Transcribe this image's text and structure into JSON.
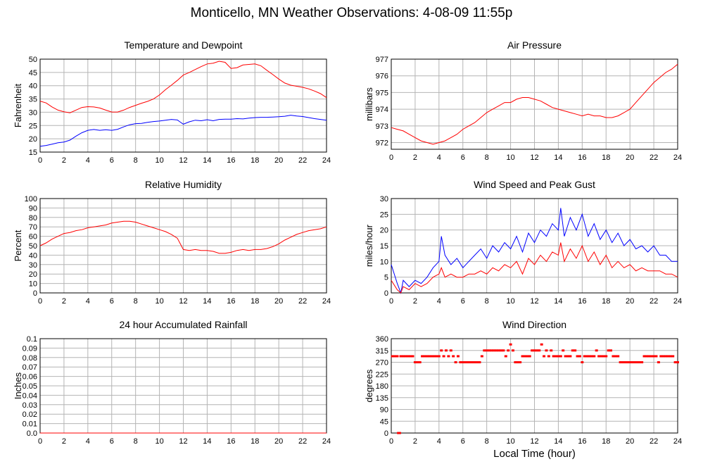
{
  "title": "Monticello, MN Weather Observations: 4-08-09 11:55p",
  "footer_xlabel": "Local Time (hour)",
  "colors": {
    "red": "#ff0000",
    "blue": "#0000ff",
    "grid": "#b4b4b4"
  },
  "chart_data": [
    {
      "id": "temp",
      "type": "line",
      "title": "Temperature and Dewpoint",
      "ylabel": "Fahrenheit",
      "xlim": [
        0,
        24
      ],
      "ylim": [
        15,
        50
      ],
      "xticks": [
        0,
        2,
        4,
        6,
        8,
        10,
        12,
        14,
        16,
        18,
        20,
        22,
        24
      ],
      "yticks": [
        15,
        20,
        25,
        30,
        35,
        40,
        45,
        50
      ],
      "yticklabels": [
        "15",
        "20",
        "25",
        "30",
        "35",
        "40",
        "45",
        "50"
      ],
      "grid": true,
      "series": [
        {
          "color": "#ff0000",
          "x": [
            0,
            0.5,
            1,
            1.5,
            2,
            2.5,
            3,
            3.5,
            4,
            4.5,
            5,
            5.5,
            6,
            6.5,
            7,
            7.5,
            8,
            8.5,
            9,
            9.5,
            10,
            10.5,
            11,
            11.5,
            12,
            12.5,
            13,
            13.5,
            14,
            14.5,
            15,
            15.5,
            16,
            16.5,
            17,
            17.5,
            18,
            18.5,
            19,
            19.5,
            20,
            20.5,
            21,
            21.5,
            22,
            22.5,
            23,
            23.5,
            24
          ],
          "y": [
            34.2,
            33.5,
            32,
            30.8,
            30.2,
            29.8,
            30.8,
            31.8,
            32.1,
            32,
            31.6,
            30.8,
            30.1,
            30.1,
            30.8,
            31.8,
            32.6,
            33.4,
            34.1,
            35,
            36.5,
            38.5,
            40.2,
            42,
            44,
            45,
            46.1,
            47.2,
            48.2,
            48.5,
            49.2,
            48.8,
            46.5,
            46.8,
            47.8,
            48,
            48.2,
            47.5,
            45.8,
            44.2,
            42.5,
            41,
            40.2,
            39.8,
            39.4,
            38.8,
            38,
            37,
            35.5
          ]
        },
        {
          "color": "#0000ff",
          "x": [
            0,
            0.5,
            1,
            1.5,
            2,
            2.5,
            3,
            3.5,
            4,
            4.5,
            5,
            5.5,
            6,
            6.5,
            7,
            7.5,
            8,
            8.5,
            9,
            9.5,
            10,
            10.5,
            11,
            11.5,
            12,
            12.5,
            13,
            13.5,
            14,
            14.5,
            15,
            15.5,
            16,
            16.5,
            17,
            17.5,
            18,
            18.5,
            19,
            19.5,
            20,
            20.5,
            21,
            21.5,
            22,
            22.5,
            23,
            23.5,
            24
          ],
          "y": [
            17.2,
            17.5,
            18,
            18.5,
            18.8,
            19.5,
            21,
            22.3,
            23.2,
            23.5,
            23.2,
            23.4,
            23.2,
            23.6,
            24.5,
            25.3,
            25.7,
            25.8,
            26.2,
            26.5,
            26.7,
            27,
            27.3,
            27.1,
            25.5,
            26.4,
            27,
            26.8,
            27.2,
            26.8,
            27.3,
            27.4,
            27.4,
            27.6,
            27.5,
            27.8,
            28,
            28.1,
            28.1,
            28.2,
            28.3,
            28.5,
            28.9,
            28.6,
            28.4,
            28,
            27.6,
            27.3,
            27
          ]
        }
      ]
    },
    {
      "id": "pressure",
      "type": "line",
      "title": "Air Pressure",
      "ylabel": "millibars",
      "xlim": [
        0,
        24
      ],
      "ylim": [
        971.6,
        977
      ],
      "xticks": [
        0,
        2,
        4,
        6,
        8,
        10,
        12,
        14,
        16,
        18,
        20,
        22,
        24
      ],
      "yticks": [
        972,
        973,
        974,
        975,
        976,
        977
      ],
      "yticklabels": [
        "972",
        "973",
        "974",
        "975",
        "976",
        "977"
      ],
      "grid": true,
      "series": [
        {
          "color": "#ff0000",
          "x": [
            0,
            0.5,
            1,
            1.5,
            2,
            2.5,
            3,
            3.5,
            4,
            4.5,
            5,
            5.5,
            6,
            6.5,
            7,
            7.5,
            8,
            8.5,
            9,
            9.5,
            10,
            10.5,
            11,
            11.5,
            12,
            12.5,
            13,
            13.5,
            14,
            14.5,
            15,
            15.5,
            16,
            16.5,
            17,
            17.5,
            18,
            18.5,
            19,
            19.5,
            20,
            20.5,
            21,
            21.5,
            22,
            22.5,
            23,
            23.5,
            24
          ],
          "y": [
            972.9,
            972.8,
            972.7,
            972.5,
            972.3,
            972.1,
            972,
            971.9,
            972,
            972.1,
            972.3,
            972.5,
            972.8,
            973,
            973.2,
            973.5,
            973.8,
            974,
            974.2,
            974.4,
            974.4,
            974.6,
            974.7,
            974.7,
            974.6,
            974.5,
            974.3,
            974.1,
            974,
            973.9,
            973.8,
            973.7,
            973.6,
            973.7,
            973.6,
            973.6,
            973.5,
            973.5,
            973.6,
            973.8,
            974,
            974.4,
            974.8,
            975.2,
            975.6,
            975.9,
            976.2,
            976.4,
            976.7
          ]
        }
      ]
    },
    {
      "id": "humidity",
      "type": "line",
      "title": "Relative Humidity",
      "ylabel": "Percent",
      "xlim": [
        0,
        24
      ],
      "ylim": [
        0,
        100
      ],
      "xticks": [
        0,
        2,
        4,
        6,
        8,
        10,
        12,
        14,
        16,
        18,
        20,
        22,
        24
      ],
      "yticks": [
        0,
        10,
        20,
        30,
        40,
        50,
        60,
        70,
        80,
        90,
        100
      ],
      "yticklabels": [
        "0",
        "10",
        "20",
        "30",
        "40",
        "50",
        "60",
        "70",
        "80",
        "90",
        "100"
      ],
      "grid": true,
      "series": [
        {
          "color": "#ff0000",
          "x": [
            0,
            0.5,
            1,
            1.5,
            2,
            2.5,
            3,
            3.5,
            4,
            4.5,
            5,
            5.5,
            6,
            6.5,
            7,
            7.5,
            8,
            8.5,
            9,
            9.5,
            10,
            10.5,
            11,
            11.5,
            12,
            12.5,
            13,
            13.5,
            14,
            14.5,
            15,
            15.5,
            16,
            16.5,
            17,
            17.5,
            18,
            18.5,
            19,
            19.5,
            20,
            20.5,
            21,
            21.5,
            22,
            22.5,
            23,
            23.5,
            24
          ],
          "y": [
            50,
            53,
            57,
            60,
            63,
            64,
            66,
            67,
            69,
            70,
            71,
            72,
            74,
            75,
            76,
            76,
            75,
            73,
            71,
            69,
            67,
            65,
            62,
            58,
            46,
            45,
            46,
            45,
            45,
            44,
            42,
            42,
            43,
            45,
            46,
            45,
            46,
            46,
            47,
            49,
            52,
            56,
            59,
            62,
            64,
            66,
            67,
            68,
            70
          ]
        }
      ]
    },
    {
      "id": "wind",
      "type": "line",
      "title": "Wind Speed and Peak Gust",
      "ylabel": "miles/hour",
      "xlim": [
        0,
        24
      ],
      "ylim": [
        0,
        30
      ],
      "xticks": [
        0,
        2,
        4,
        6,
        8,
        10,
        12,
        14,
        16,
        18,
        20,
        22,
        24
      ],
      "yticks": [
        0,
        5,
        10,
        15,
        20,
        25,
        30
      ],
      "yticklabels": [
        "0",
        "5",
        "10",
        "15",
        "20",
        "25",
        "30"
      ],
      "grid": true,
      "series": [
        {
          "color": "#0000ff",
          "x": [
            0,
            0.5,
            0.8,
            1,
            1.5,
            2,
            2.5,
            3,
            3.5,
            4,
            4.2,
            4.5,
            5,
            5.5,
            6,
            6.5,
            7,
            7.5,
            8,
            8.5,
            9,
            9.5,
            10,
            10.5,
            11,
            11.5,
            12,
            12.5,
            13,
            13.5,
            14,
            14.2,
            14.5,
            15,
            15.5,
            16,
            16.5,
            17,
            17.5,
            18,
            18.5,
            19,
            19.5,
            20,
            20.5,
            21,
            21.5,
            22,
            22.5,
            23,
            23.5,
            24
          ],
          "y": [
            9,
            3,
            0,
            4,
            2,
            4,
            3,
            5,
            8,
            10,
            18,
            12,
            9,
            11,
            8,
            10,
            12,
            14,
            11,
            15,
            13,
            16,
            14,
            18,
            13,
            19,
            16,
            20,
            18,
            22,
            20,
            27,
            18,
            24,
            20,
            25,
            18,
            22,
            17,
            20,
            16,
            19,
            15,
            17,
            14,
            15,
            13,
            15,
            12,
            12,
            10,
            10
          ]
        },
        {
          "color": "#ff0000",
          "x": [
            0,
            0.5,
            0.8,
            1,
            1.5,
            2,
            2.5,
            3,
            3.5,
            4,
            4.2,
            4.5,
            5,
            5.5,
            6,
            6.5,
            7,
            7.5,
            8,
            8.5,
            9,
            9.5,
            10,
            10.5,
            11,
            11.5,
            12,
            12.5,
            13,
            13.5,
            14,
            14.2,
            14.5,
            15,
            15.5,
            16,
            16.5,
            17,
            17.5,
            18,
            18.5,
            19,
            19.5,
            20,
            20.5,
            21,
            21.5,
            22,
            22.5,
            23,
            23.5,
            24
          ],
          "y": [
            4,
            1,
            0,
            2,
            1,
            3,
            2,
            3,
            5,
            6,
            8,
            5,
            6,
            5,
            5,
            6,
            6,
            7,
            6,
            8,
            7,
            9,
            8,
            10,
            6,
            11,
            9,
            12,
            10,
            13,
            12,
            16,
            10,
            14,
            11,
            15,
            10,
            13,
            9,
            12,
            8,
            10,
            8,
            9,
            7,
            8,
            7,
            7,
            7,
            6,
            6,
            5
          ]
        }
      ]
    },
    {
      "id": "rain",
      "type": "line",
      "title": "24 hour Accumulated Rainfall",
      "ylabel": "Inches",
      "xlim": [
        0,
        24
      ],
      "ylim": [
        0,
        0.1
      ],
      "xticks": [
        0,
        2,
        4,
        6,
        8,
        10,
        12,
        14,
        16,
        18,
        20,
        22,
        24
      ],
      "yticks": [
        0,
        0.01,
        0.02,
        0.03,
        0.04,
        0.05,
        0.06,
        0.07,
        0.08,
        0.09,
        0.1
      ],
      "yticklabels": [
        "0.0",
        "0.01",
        "0.02",
        "0.03",
        "0.04",
        "0.05",
        "0.06",
        "0.07",
        "0.08",
        "0.09",
        "0.1"
      ],
      "grid": true,
      "series": [
        {
          "color": "#ff0000",
          "x": [
            0,
            24
          ],
          "y": [
            0,
            0
          ]
        }
      ]
    },
    {
      "id": "direction",
      "type": "scatter",
      "title": "Wind Direction",
      "ylabel": "degrees",
      "xlabel": "Local Time (hour)",
      "xlim": [
        0,
        24
      ],
      "ylim": [
        0,
        360
      ],
      "xticks": [
        0,
        2,
        4,
        6,
        8,
        10,
        12,
        14,
        16,
        18,
        20,
        22,
        24
      ],
      "yticks": [
        0,
        45,
        90,
        135,
        180,
        225,
        270,
        315,
        360
      ],
      "yticklabels": [
        "0",
        "45",
        "90",
        "135",
        "180",
        "225",
        "270",
        "315",
        "360"
      ],
      "grid": true,
      "series": [
        {
          "color": "#ff0000",
          "x": [
            0.1,
            0.3,
            0.5,
            0.6,
            0.7,
            0.8,
            1.0,
            1.2,
            1.4,
            1.6,
            1.8,
            2.0,
            2.2,
            2.4,
            2.6,
            2.8,
            3.0,
            3.2,
            3.4,
            3.6,
            3.8,
            4.0,
            4.2,
            4.4,
            4.6,
            4.8,
            5.0,
            5.2,
            5.4,
            5.6,
            5.8,
            6.0,
            6.2,
            6.4,
            6.6,
            6.8,
            7.0,
            7.2,
            7.4,
            7.6,
            7.8,
            8.0,
            8.2,
            8.4,
            8.6,
            8.8,
            9.0,
            9.2,
            9.4,
            9.6,
            9.8,
            10.0,
            10.2,
            10.4,
            10.6,
            10.8,
            11.0,
            11.2,
            11.4,
            11.6,
            11.8,
            12.0,
            12.2,
            12.4,
            12.6,
            12.8,
            13.0,
            13.2,
            13.4,
            13.6,
            13.8,
            14.0,
            14.2,
            14.4,
            14.6,
            14.8,
            15.0,
            15.2,
            15.4,
            15.6,
            15.8,
            16.0,
            16.2,
            16.4,
            16.6,
            16.8,
            17.0,
            17.2,
            17.4,
            17.6,
            17.8,
            18.0,
            18.2,
            18.4,
            18.6,
            18.8,
            19.0,
            19.2,
            19.4,
            19.6,
            19.8,
            20.0,
            20.2,
            20.4,
            20.6,
            20.8,
            21.0,
            21.2,
            21.4,
            21.6,
            21.8,
            22.0,
            22.2,
            22.4,
            22.6,
            22.8,
            23.0,
            23.2,
            23.4,
            23.6,
            23.8,
            24.0
          ],
          "y": [
            293,
            293,
            293,
            0,
            0,
            293,
            293,
            293,
            293,
            293,
            293,
            270,
            270,
            270,
            293,
            293,
            293,
            293,
            293,
            293,
            293,
            293,
            315,
            293,
            315,
            293,
            315,
            293,
            270,
            293,
            270,
            270,
            270,
            270,
            270,
            270,
            270,
            270,
            270,
            293,
            315,
            315,
            315,
            315,
            315,
            315,
            315,
            315,
            315,
            293,
            315,
            338,
            315,
            270,
            270,
            270,
            293,
            293,
            293,
            293,
            315,
            315,
            315,
            315,
            338,
            293,
            315,
            293,
            315,
            293,
            293,
            293,
            293,
            315,
            293,
            293,
            293,
            315,
            315,
            293,
            293,
            270,
            293,
            293,
            293,
            293,
            293,
            315,
            293,
            293,
            293,
            293,
            315,
            315,
            293,
            293,
            293,
            270,
            270,
            270,
            270,
            270,
            270,
            270,
            270,
            270,
            270,
            293,
            293,
            293,
            293,
            293,
            293,
            270,
            293,
            293,
            293,
            293,
            293,
            293,
            270,
            270
          ]
        }
      ]
    }
  ]
}
